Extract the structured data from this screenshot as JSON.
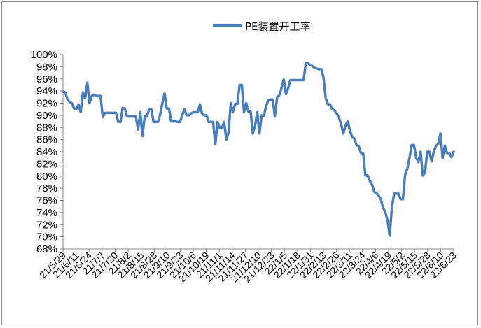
{
  "chart_data": {
    "type": "line",
    "title": "",
    "xlabel": "",
    "ylabel": "",
    "ylim": [
      0.68,
      1.0
    ],
    "y_tick_step": 0.02,
    "y_tick_format": "percent",
    "grid": false,
    "legend_position": "top-center",
    "series": [
      {
        "name": "PE装置开工率",
        "color": "#4a7ebb",
        "values": [
          0.939,
          0.938,
          0.926,
          0.922,
          0.92,
          0.911,
          0.91,
          0.918,
          0.905,
          0.938,
          0.928,
          0.954,
          0.92,
          0.932,
          0.934,
          0.932,
          0.932,
          0.932,
          0.897,
          0.904,
          0.904,
          0.904,
          0.904,
          0.904,
          0.904,
          0.889,
          0.889,
          0.912,
          0.911,
          0.898,
          0.898,
          0.898,
          0.898,
          0.898,
          0.876,
          0.905,
          0.866,
          0.898,
          0.898,
          0.91,
          0.91,
          0.889,
          0.889,
          0.889,
          0.901,
          0.92,
          0.936,
          0.911,
          0.911,
          0.89,
          0.89,
          0.89,
          0.889,
          0.889,
          0.9,
          0.91,
          0.9,
          0.9,
          0.903,
          0.905,
          0.905,
          0.905,
          0.918,
          0.903,
          0.9,
          0.9,
          0.889,
          0.889,
          0.889,
          0.852,
          0.889,
          0.879,
          0.879,
          0.889,
          0.86,
          0.872,
          0.92,
          0.905,
          0.919,
          0.919,
          0.95,
          0.95,
          0.905,
          0.92,
          0.906,
          0.906,
          0.87,
          0.883,
          0.905,
          0.87,
          0.9,
          0.899,
          0.915,
          0.925,
          0.926,
          0.926,
          0.898,
          0.93,
          0.933,
          0.945,
          0.959,
          0.935,
          0.945,
          0.958,
          0.958,
          0.958,
          0.958,
          0.958,
          0.958,
          0.958,
          0.986,
          0.986,
          0.983,
          0.981,
          0.978,
          0.977,
          0.976,
          0.976,
          0.963,
          0.928,
          0.918,
          0.918,
          0.91,
          0.908,
          0.903,
          0.897,
          0.885,
          0.87,
          0.883,
          0.89,
          0.875,
          0.864,
          0.862,
          0.851,
          0.849,
          0.838,
          0.838,
          0.801,
          0.801,
          0.792,
          0.786,
          0.774,
          0.772,
          0.768,
          0.762,
          0.748,
          0.741,
          0.728,
          0.702,
          0.748,
          0.771,
          0.771,
          0.771,
          0.762,
          0.762,
          0.802,
          0.812,
          0.83,
          0.851,
          0.851,
          0.83,
          0.823,
          0.84,
          0.801,
          0.805,
          0.84,
          0.84,
          0.824,
          0.84,
          0.85,
          0.853,
          0.87,
          0.83,
          0.85,
          0.838,
          0.838,
          0.831,
          0.84
        ]
      }
    ],
    "x_tick_labels": [
      "21/5/29",
      "21/6/11",
      "21/6/24",
      "21/7/7",
      "21/7/20",
      "21/8/2",
      "21/8/15",
      "21/8/28",
      "21/9/10",
      "21/9/23",
      "21/10/6",
      "21/10/19",
      "21/11/1",
      "21/11/14",
      "21/11/27",
      "21/12/10",
      "21/12/23",
      "22/1/5",
      "22/1/18",
      "22/1/31",
      "22/2/13",
      "22/2/26",
      "22/3/11",
      "22/3/24",
      "22/4/6",
      "22/4/19",
      "22/5/2",
      "22/5/15",
      "22/5/28",
      "22/6/10",
      "22/6/23"
    ]
  }
}
